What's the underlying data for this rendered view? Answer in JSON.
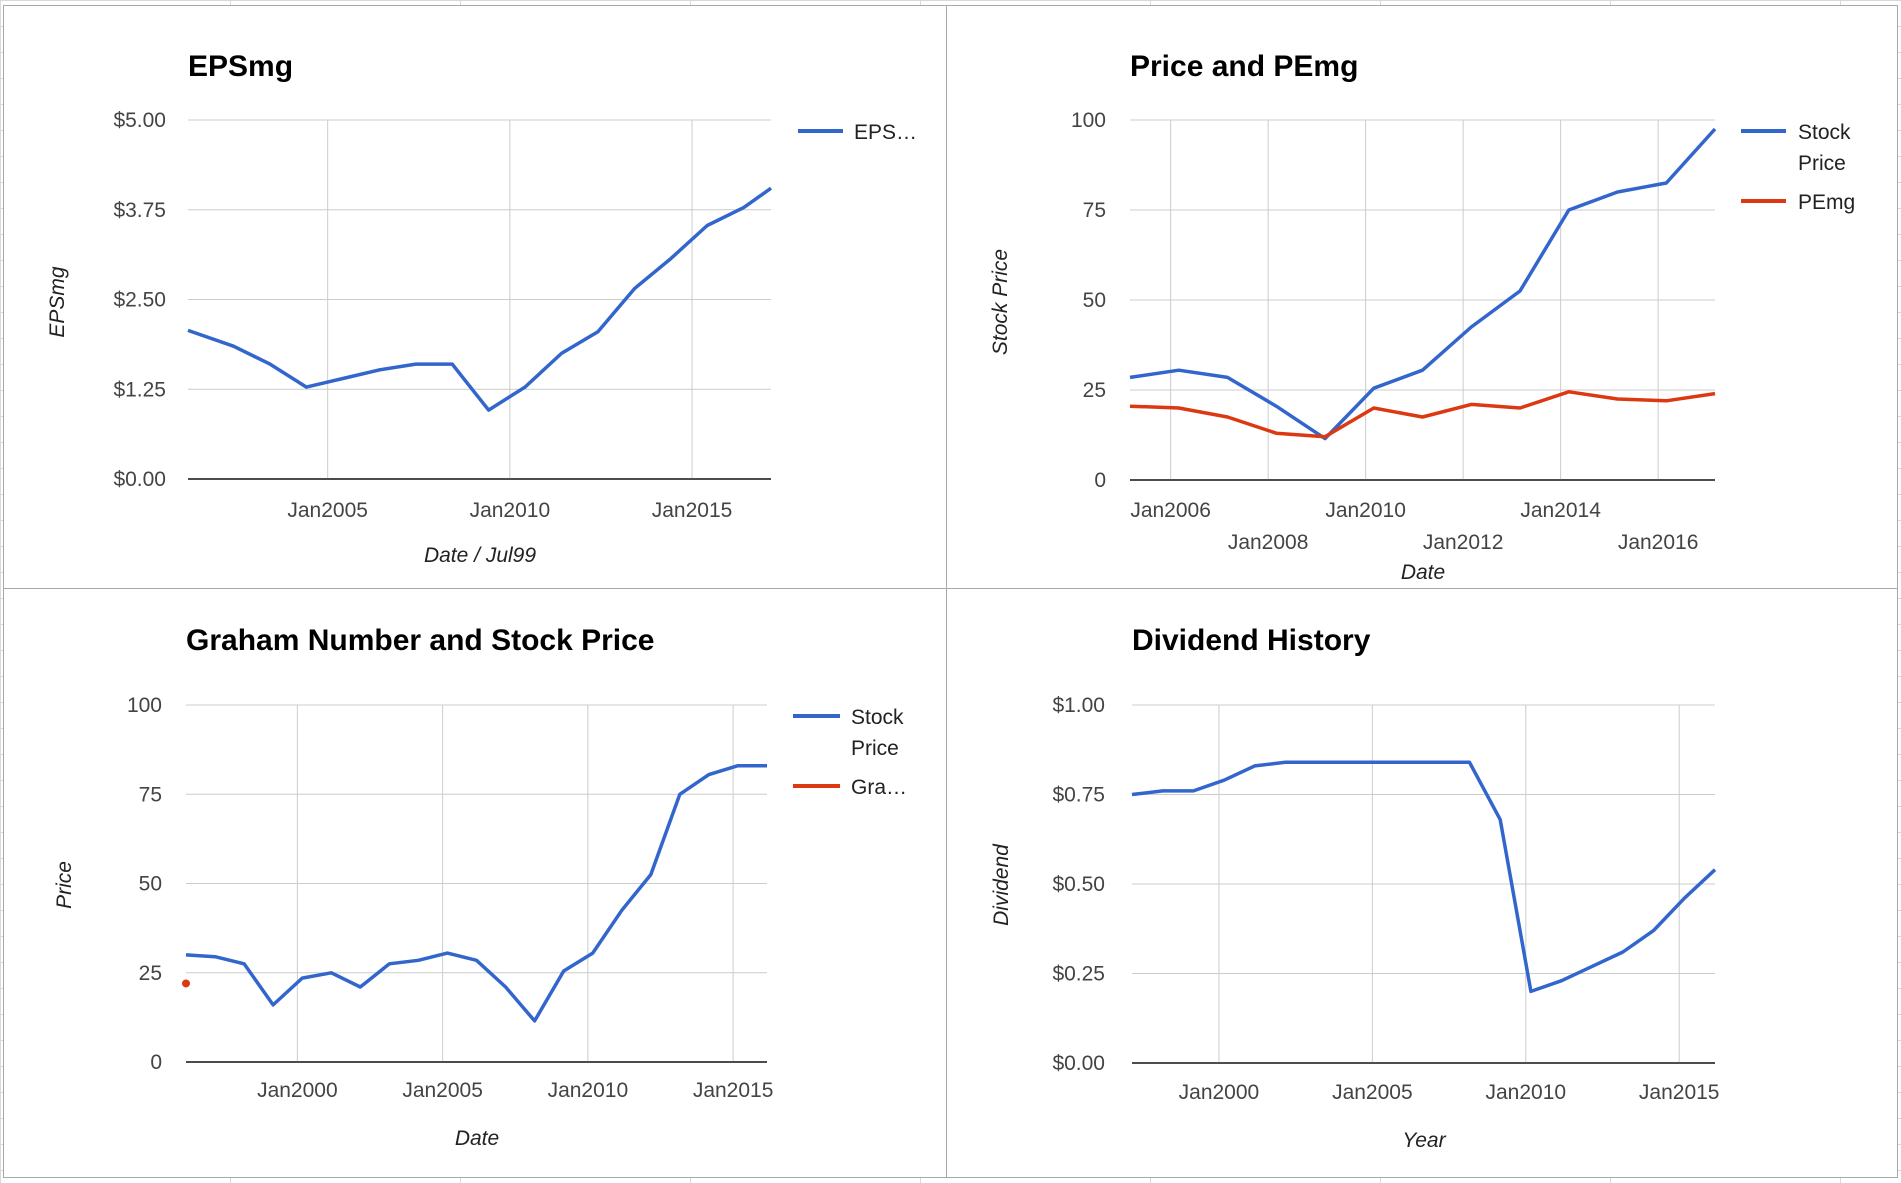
{
  "chart_data": [
    {
      "type": "line",
      "title": "EPSmg",
      "xlabel": "Date / Jul99",
      "ylabel": "EPSmg",
      "x_ticks": [
        "Jan2005",
        "Jan2010",
        "Jan2015"
      ],
      "y_ticks": [
        "$0.00",
        "$1.25",
        "$2.50",
        "$3.75",
        "$5.00"
      ],
      "ylim": [
        0,
        5
      ],
      "xlim": [
        "2001-03",
        "2017-03"
      ],
      "grid": true,
      "legend_position": "right",
      "series": [
        {
          "name": "EPS…",
          "color": "#3366cc",
          "x": [
            "2001-03",
            "2002-06",
            "2003-06",
            "2004-06",
            "2005-06",
            "2006-06",
            "2007-06",
            "2008-06",
            "2009-06",
            "2010-06",
            "2011-06",
            "2012-06",
            "2013-06",
            "2014-06",
            "2015-06",
            "2016-06",
            "2017-03"
          ],
          "values": [
            2.07,
            1.85,
            1.6,
            1.28,
            1.4,
            1.52,
            1.6,
            1.6,
            0.96,
            1.28,
            1.75,
            2.05,
            2.65,
            3.07,
            3.53,
            3.78,
            4.05
          ]
        }
      ]
    },
    {
      "type": "line",
      "title": "Price and PEmg",
      "xlabel": "Date",
      "ylabel": "Stock Price",
      "x_ticks_upper": [
        "Jan2006",
        "Jan2010",
        "Jan2014"
      ],
      "x_ticks_lower": [
        "Jan2008",
        "Jan2012",
        "Jan2016"
      ],
      "y_ticks": [
        "0",
        "25",
        "50",
        "75",
        "100"
      ],
      "ylim": [
        0,
        100
      ],
      "xlim": [
        "2005-03",
        "2017-03"
      ],
      "grid": true,
      "legend_position": "right",
      "series": [
        {
          "name": "Stock Price",
          "color": "#3366cc",
          "x": [
            "2005-03",
            "2006-03",
            "2007-03",
            "2008-03",
            "2009-03",
            "2010-03",
            "2011-03",
            "2012-03",
            "2013-03",
            "2014-03",
            "2015-03",
            "2016-03",
            "2017-03"
          ],
          "values": [
            28.5,
            30.5,
            28.5,
            20.5,
            11.5,
            25.5,
            30.5,
            42.5,
            52.5,
            75,
            80,
            82.5,
            97.5
          ]
        },
        {
          "name": "PEmg",
          "color": "#dc3912",
          "x": [
            "2005-03",
            "2006-03",
            "2007-03",
            "2008-03",
            "2009-03",
            "2010-03",
            "2011-03",
            "2012-03",
            "2013-03",
            "2014-03",
            "2015-03",
            "2016-03",
            "2017-03"
          ],
          "values": [
            20.5,
            20,
            17.5,
            13,
            12,
            20,
            17.5,
            21,
            20,
            24.5,
            22.5,
            22,
            24
          ]
        }
      ]
    },
    {
      "type": "line",
      "title": "Graham Number and Stock Price",
      "xlabel": "Date",
      "ylabel": "Price",
      "x_ticks": [
        "Jan2000",
        "Jan2005",
        "Jan2010",
        "Jan2015"
      ],
      "y_ticks": [
        "0",
        "25",
        "50",
        "75",
        "100"
      ],
      "ylim": [
        0,
        100
      ],
      "xlim": [
        "1996-03",
        "2016-03"
      ],
      "grid": true,
      "legend_position": "right",
      "series": [
        {
          "name": "Stock Price",
          "color": "#3366cc",
          "x": [
            "1996-03",
            "1997-03",
            "1998-03",
            "1999-03",
            "2000-03",
            "2001-03",
            "2002-03",
            "2003-03",
            "2004-03",
            "2005-03",
            "2006-03",
            "2007-03",
            "2008-03",
            "2009-03",
            "2010-03",
            "2011-03",
            "2012-03",
            "2013-03",
            "2014-03",
            "2015-03",
            "2016-03"
          ],
          "values": [
            30,
            29.5,
            27.5,
            16,
            23.5,
            25,
            21,
            27.5,
            28.5,
            30.5,
            28.5,
            21,
            11.5,
            25.5,
            30.5,
            42.5,
            52.5,
            75,
            80.5,
            83,
            83
          ]
        },
        {
          "name": "Gra…",
          "color": "#dc3912",
          "x": [
            "1996-03"
          ],
          "values": [
            22
          ]
        }
      ]
    },
    {
      "type": "line",
      "title": "Dividend History",
      "xlabel": "Year",
      "ylabel": "Dividend",
      "x_ticks": [
        "Jan2000",
        "Jan2005",
        "Jan2010",
        "Jan2015"
      ],
      "y_ticks": [
        "$0.00",
        "$0.25",
        "$0.50",
        "$0.75",
        "$1.00"
      ],
      "ylim": [
        0,
        1
      ],
      "xlim": [
        "1997-03",
        "2016-03"
      ],
      "grid": true,
      "legend_position": "none",
      "series": [
        {
          "name": "",
          "color": "#3366cc",
          "x": [
            "1997-03",
            "1998-03",
            "1999-03",
            "2000-03",
            "2001-03",
            "2002-03",
            "2003-03",
            "2004-03",
            "2005-03",
            "2006-03",
            "2007-03",
            "2008-03",
            "2009-03",
            "2010-03",
            "2011-03",
            "2012-03",
            "2013-03",
            "2014-03",
            "2015-03",
            "2016-03"
          ],
          "values": [
            0.75,
            0.76,
            0.76,
            0.79,
            0.83,
            0.84,
            0.84,
            0.84,
            0.84,
            0.84,
            0.84,
            0.84,
            0.68,
            0.2,
            0.23,
            0.27,
            0.31,
            0.37,
            0.46,
            0.54
          ]
        }
      ]
    }
  ]
}
